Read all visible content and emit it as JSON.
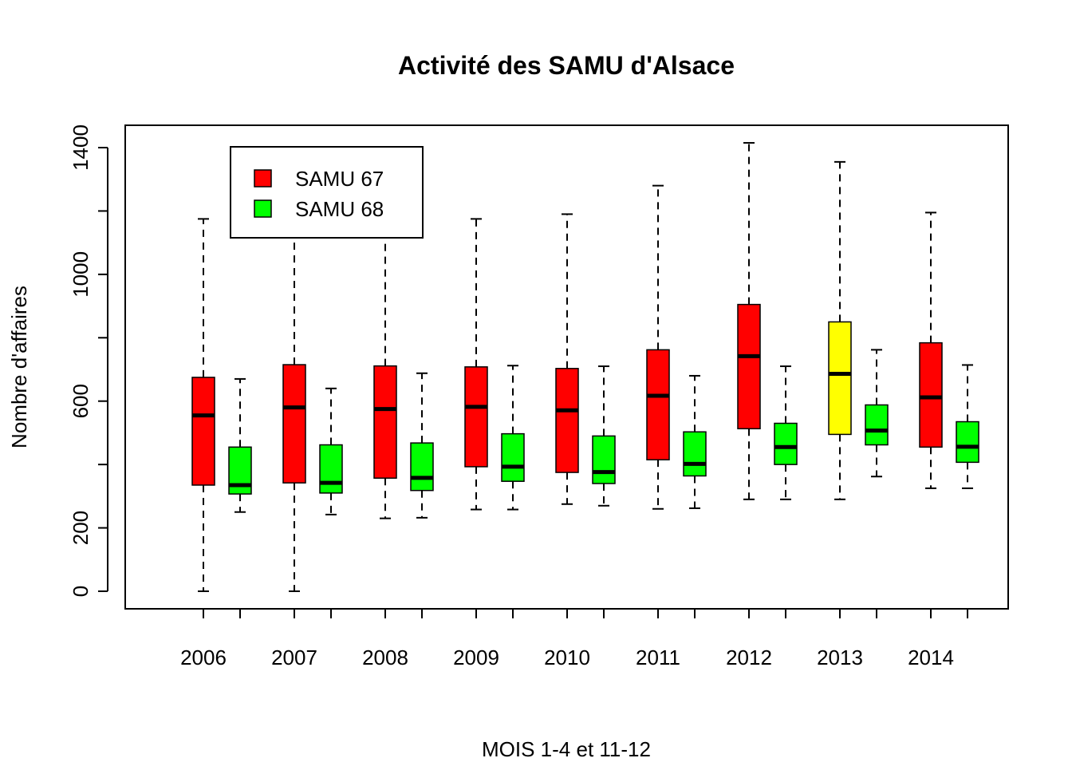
{
  "chart_data": {
    "type": "boxplot",
    "title": "Activité des SAMU d'Alsace",
    "xlabel": "MOIS 1-4 et 11-12",
    "ylabel": "Nombre d'affaires",
    "ylim": [
      0,
      1400
    ],
    "y_ticks": [
      0,
      200,
      600,
      1000,
      1400
    ],
    "y_minor_ticks": [
      400,
      800,
      1200
    ],
    "categories": [
      "2006",
      "2007",
      "2008",
      "2009",
      "2010",
      "2011",
      "2012",
      "2013",
      "2014"
    ],
    "legend": {
      "position": "top-left",
      "entries": [
        {
          "label": "SAMU 67",
          "color": "#ff0000"
        },
        {
          "label": "SAMU 68",
          "color": "#00ff00"
        }
      ]
    },
    "series": [
      {
        "name": "SAMU 67",
        "color": "#ff0000",
        "boxes": [
          {
            "min": 0,
            "q1": 335,
            "median": 555,
            "q3": 675,
            "max": 1175
          },
          {
            "min": 0,
            "q1": 342,
            "median": 580,
            "q3": 715,
            "max": 1120
          },
          {
            "min": 230,
            "q1": 357,
            "median": 575,
            "q3": 711,
            "max": 1130
          },
          {
            "min": 258,
            "q1": 393,
            "median": 582,
            "q3": 708,
            "max": 1175
          },
          {
            "min": 275,
            "q1": 375,
            "median": 571,
            "q3": 703,
            "max": 1190
          },
          {
            "min": 260,
            "q1": 415,
            "median": 617,
            "q3": 762,
            "max": 1280
          },
          {
            "min": 290,
            "q1": 513,
            "median": 742,
            "q3": 905,
            "max": 1415
          },
          {
            "min": 290,
            "q1": 495,
            "median": 686,
            "q3": 850,
            "max": 1355
          },
          {
            "min": 325,
            "q1": 455,
            "median": 612,
            "q3": 784,
            "max": 1195
          }
        ]
      },
      {
        "name": "SAMU 68",
        "color": "#00ff00",
        "boxes": [
          {
            "min": 250,
            "q1": 307,
            "median": 335,
            "q3": 455,
            "max": 670
          },
          {
            "min": 242,
            "q1": 310,
            "median": 342,
            "q3": 462,
            "max": 640
          },
          {
            "min": 232,
            "q1": 318,
            "median": 358,
            "q3": 468,
            "max": 688
          },
          {
            "min": 258,
            "q1": 347,
            "median": 393,
            "q3": 497,
            "max": 712
          },
          {
            "min": 270,
            "q1": 340,
            "median": 376,
            "q3": 490,
            "max": 710
          },
          {
            "min": 262,
            "q1": 364,
            "median": 402,
            "q3": 503,
            "max": 680
          },
          {
            "min": 290,
            "q1": 400,
            "median": 455,
            "q3": 530,
            "max": 710
          },
          {
            "min": 362,
            "q1": 462,
            "median": 507,
            "q3": 588,
            "max": 762
          },
          {
            "min": 325,
            "q1": 407,
            "median": 456,
            "q3": 535,
            "max": 714
          }
        ]
      }
    ],
    "highlight": {
      "series": "SAMU 67",
      "category": "2013",
      "color": "#ffff00"
    }
  }
}
